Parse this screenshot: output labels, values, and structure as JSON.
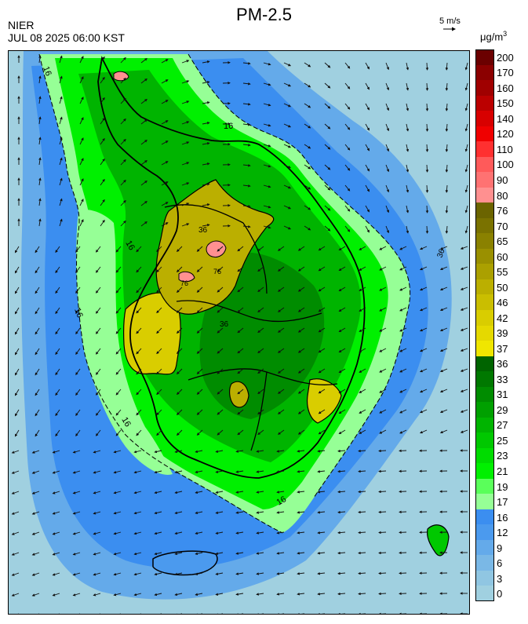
{
  "header": {
    "title": "PM-2.5",
    "agency": "NIER",
    "timestamp": "JUL 08 2025 06:00 KST",
    "wind_reference": "5 m/s",
    "unit_base": "μg/m",
    "unit_exp": "3"
  },
  "map": {
    "region": "Korean Peninsula",
    "variable": "PM-2.5",
    "wind_arrows": "overlay",
    "contour_labels": [
      "16",
      "16",
      "16",
      "16",
      "16",
      "16",
      "36",
      "36",
      "36",
      "76",
      "76"
    ]
  },
  "legend": {
    "levels": [
      {
        "label": "200",
        "color": "#6b0000"
      },
      {
        "label": "170",
        "color": "#8b0000"
      },
      {
        "label": "160",
        "color": "#a00000"
      },
      {
        "label": "150",
        "color": "#bb0000"
      },
      {
        "label": "140",
        "color": "#d80000"
      },
      {
        "label": "120",
        "color": "#f00000"
      },
      {
        "label": "110",
        "color": "#ff3030"
      },
      {
        "label": "100",
        "color": "#ff5a5a"
      },
      {
        "label": "90",
        "color": "#ff7272"
      },
      {
        "label": "80",
        "color": "#ff9090"
      },
      {
        "label": "76",
        "color": "#6b6400"
      },
      {
        "label": "70",
        "color": "#7a7200"
      },
      {
        "label": "65",
        "color": "#8a8100"
      },
      {
        "label": "60",
        "color": "#9a9000"
      },
      {
        "label": "55",
        "color": "#aba000"
      },
      {
        "label": "50",
        "color": "#bbaf00"
      },
      {
        "label": "46",
        "color": "#cabe00"
      },
      {
        "label": "42",
        "color": "#d9cd00"
      },
      {
        "label": "39",
        "color": "#e5d900"
      },
      {
        "label": "37",
        "color": "#f0e600"
      },
      {
        "label": "36",
        "color": "#006400"
      },
      {
        "label": "33",
        "color": "#007800"
      },
      {
        "label": "31",
        "color": "#008c00"
      },
      {
        "label": "29",
        "color": "#00a000"
      },
      {
        "label": "27",
        "color": "#00b400"
      },
      {
        "label": "25",
        "color": "#00c800"
      },
      {
        "label": "23",
        "color": "#00dc00"
      },
      {
        "label": "21",
        "color": "#00f000"
      },
      {
        "label": "19",
        "color": "#5aff5a"
      },
      {
        "label": "17",
        "color": "#96ff96"
      },
      {
        "label": "16",
        "color": "#3b8ef0"
      },
      {
        "label": "12",
        "color": "#4b9aee"
      },
      {
        "label": "9",
        "color": "#64aaea"
      },
      {
        "label": "6",
        "color": "#7ab8e6"
      },
      {
        "label": "3",
        "color": "#90c6e2"
      },
      {
        "label": "0",
        "color": "#a0d0e0"
      }
    ]
  }
}
